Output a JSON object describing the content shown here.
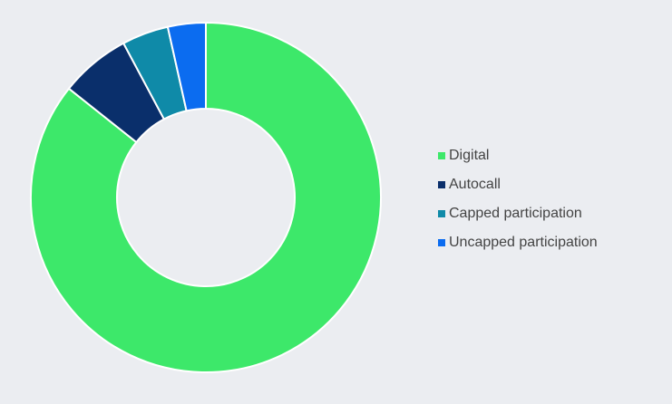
{
  "chart_data": {
    "type": "pie",
    "categories": [
      "Digital",
      "Autocall",
      "Capped participation",
      "Uncapped participation"
    ],
    "values": [
      85.7,
      6.5,
      4.3,
      3.5
    ],
    "colors": [
      "#3de86a",
      "#0a2f6b",
      "#0f8aa8",
      "#0b6cf0"
    ],
    "legend": "right"
  }
}
